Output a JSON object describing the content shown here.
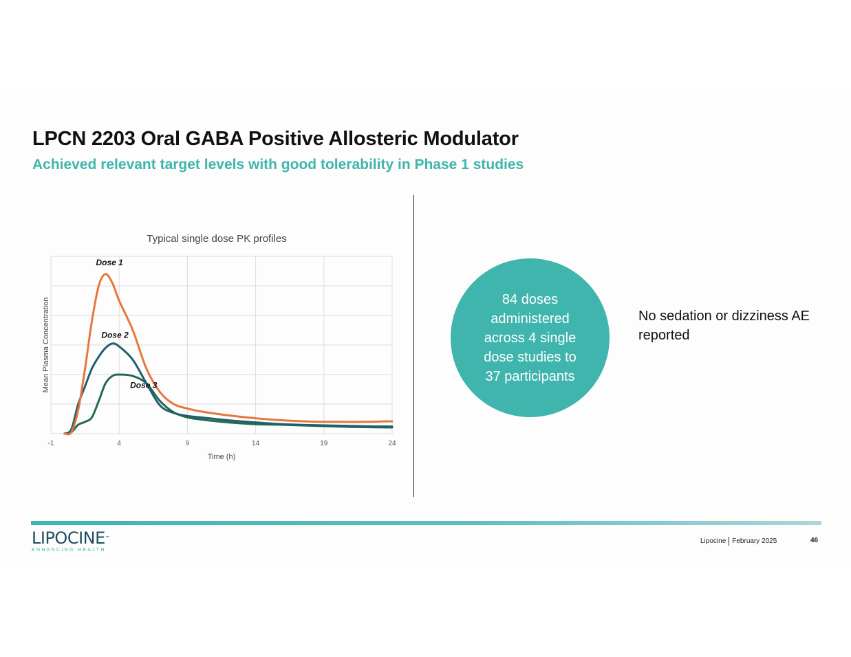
{
  "title": "LPCN 2203 Oral GABA Positive Allosteric Modulator",
  "subtitle": "Achieved relevant target levels with good tolerability in Phase 1 studies",
  "colors": {
    "accent": "#3fb5ad",
    "dose1": "#e8763a",
    "dose2": "#1f5f6e",
    "dose3": "#216b50"
  },
  "chart_data": {
    "type": "line",
    "title": "Typical single dose PK profiles",
    "xlabel": "Time (h)",
    "ylabel": "Mean Plasma Concentration",
    "xlim": [
      -1,
      24
    ],
    "ylim": [
      0,
      6
    ],
    "xticks": [
      "-1",
      "4",
      "9",
      "14",
      "19",
      "24"
    ],
    "xtick_values": [
      -1,
      4,
      9,
      14,
      19,
      24
    ],
    "ygrid_values": [
      0,
      1,
      2,
      3,
      4,
      5,
      6
    ],
    "grid": true,
    "series": [
      {
        "name": "Dose 1",
        "color": "#e8763a",
        "x": [
          0,
          0.5,
          1,
          1.5,
          2,
          2.5,
          3,
          3.5,
          4,
          5,
          6,
          7,
          8,
          9,
          10,
          12,
          14,
          16,
          18,
          20,
          22,
          24
        ],
        "y": [
          0,
          0.05,
          0.8,
          2.2,
          3.8,
          5.0,
          5.4,
          5.1,
          4.5,
          3.5,
          2.2,
          1.4,
          1.0,
          0.85,
          0.75,
          0.62,
          0.52,
          0.45,
          0.41,
          0.4,
          0.4,
          0.42
        ]
      },
      {
        "name": "Dose 2",
        "color": "#1f5f6e",
        "x": [
          0,
          0.5,
          1,
          1.5,
          2,
          2.5,
          3,
          3.5,
          4,
          5,
          6,
          7,
          8,
          9,
          10,
          12,
          14,
          16,
          18,
          20,
          22,
          24
        ],
        "y": [
          0,
          0.15,
          1.0,
          1.6,
          2.2,
          2.6,
          2.9,
          3.05,
          2.95,
          2.5,
          1.7,
          0.95,
          0.7,
          0.6,
          0.55,
          0.45,
          0.38,
          0.32,
          0.29,
          0.27,
          0.25,
          0.24
        ]
      },
      {
        "name": "Dose 3",
        "color": "#216b50",
        "x": [
          0,
          0.5,
          1,
          1.5,
          2,
          2.5,
          3,
          3.5,
          4,
          5,
          6,
          7,
          8,
          9,
          10,
          12,
          14,
          16,
          18,
          20,
          22,
          24
        ],
        "y": [
          0,
          0.05,
          0.3,
          0.4,
          0.55,
          1.1,
          1.7,
          1.95,
          2.0,
          1.95,
          1.7,
          1.1,
          0.72,
          0.55,
          0.48,
          0.38,
          0.32,
          0.3,
          0.27,
          0.24,
          0.22,
          0.21
        ]
      }
    ],
    "annotations": [
      {
        "text": "Dose 1",
        "series": "Dose 1",
        "x": 2.3,
        "y": 5.7
      },
      {
        "text": "Dose 2",
        "series": "Dose 2",
        "x": 2.7,
        "y": 3.25
      },
      {
        "text": "Dose 3",
        "series": "Dose 3",
        "x": 4.8,
        "y": 1.55
      }
    ]
  },
  "stat_circle": {
    "text": "84 doses administered across 4 single dose studies to 37 participants"
  },
  "side_note": "No sedation or dizziness AE reported",
  "footer": {
    "logo_name": "LIPOCINE",
    "logo_tm": "™",
    "logo_tagline": "ENHANCING HEALTH",
    "company": "Lipocine",
    "date": "February 2025",
    "page_number": "46"
  }
}
